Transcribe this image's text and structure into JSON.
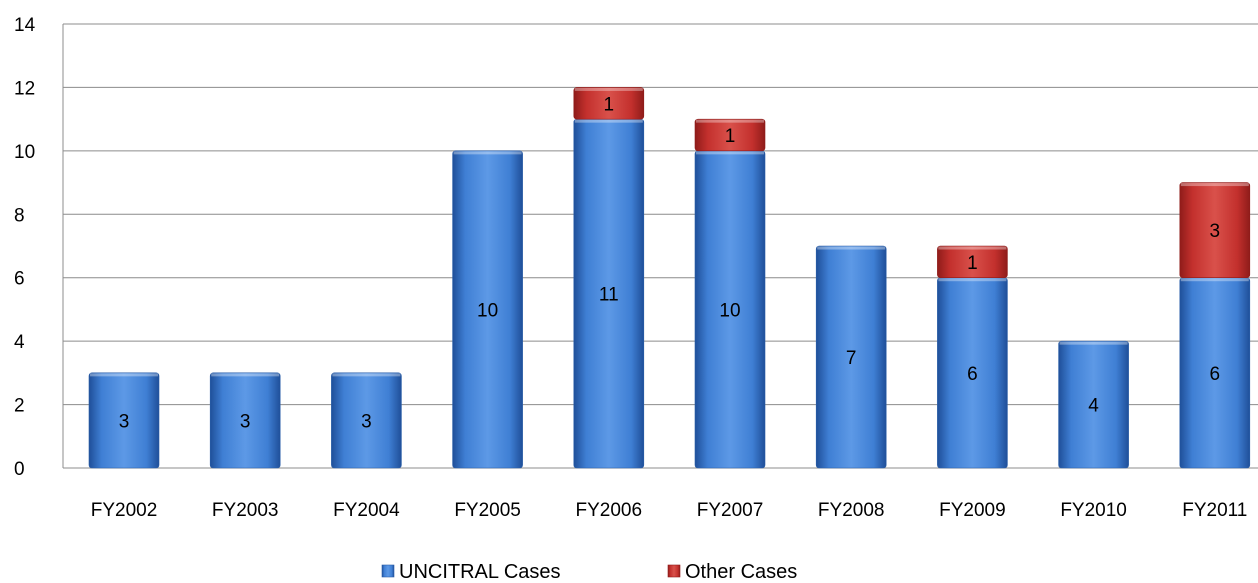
{
  "chart_data": {
    "type": "bar",
    "stacked": true,
    "title": "",
    "xlabel": "",
    "ylabel": "",
    "categories": [
      "FY2002",
      "FY2003",
      "FY2004",
      "FY2005",
      "FY2006",
      "FY2007",
      "FY2008",
      "FY2009",
      "FY2010",
      "FY2011"
    ],
    "series": [
      {
        "name": "UNCITRAL Cases",
        "color": "#3a78cc",
        "values": [
          3,
          3,
          3,
          10,
          11,
          10,
          7,
          6,
          4,
          6
        ],
        "labels": [
          "3",
          "3",
          "3",
          "10",
          "11",
          "10",
          "7",
          "6",
          "4",
          "6"
        ]
      },
      {
        "name": "Other Cases",
        "color": "#c0312f",
        "values": [
          0,
          0,
          0,
          0,
          1,
          1,
          0,
          1,
          0,
          3
        ],
        "labels": [
          "",
          "",
          "",
          "",
          "1",
          "1",
          "",
          "1",
          "",
          "3"
        ]
      }
    ],
    "ylim": [
      0,
      14
    ],
    "yticks": [
      0,
      2,
      4,
      6,
      8,
      10,
      12,
      14
    ],
    "ytick_labels": [
      "0",
      "2",
      "4",
      "6",
      "8",
      "10",
      "12",
      "14"
    ],
    "grid": true,
    "legend_position": "bottom"
  }
}
